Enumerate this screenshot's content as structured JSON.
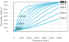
{
  "chart_data": {
    "type": "line",
    "xlabel": "Pressure (bar)",
    "ylabel": "Viscosity (μPa·s)",
    "color": "#40c0e0",
    "grid": true,
    "x": [
      0,
      200,
      400,
      600,
      800,
      1000,
      1500,
      2000,
      3000,
      4000,
      5000,
      6000
    ],
    "series": [
      {
        "name": "220 K",
        "values": [
          11,
          80,
          220,
          380,
          490,
          560,
          650,
          690,
          730,
          760,
          780,
          795
        ]
      },
      {
        "name": "240 K",
        "values": [
          12,
          50,
          130,
          240,
          340,
          420,
          540,
          610,
          690,
          740,
          770,
          790
        ]
      },
      {
        "name": "260 K",
        "values": [
          13,
          35,
          80,
          150,
          230,
          310,
          450,
          550,
          660,
          725,
          765,
          792
        ]
      },
      {
        "name": "280 K",
        "values": [
          14,
          28,
          57,
          100,
          158,
          220,
          370,
          480,
          625,
          710,
          760,
          795
        ]
      },
      {
        "name": "300 K",
        "values": [
          15,
          24,
          44,
          72,
          108,
          155,
          280,
          395,
          570,
          680,
          750,
          800
        ]
      },
      {
        "name": "320 K",
        "values": [
          16,
          21,
          36,
          57,
          83,
          115,
          205,
          305,
          490,
          625,
          720,
          790
        ]
      },
      {
        "name": "350 K",
        "values": [
          17,
          20,
          31,
          46,
          65,
          88,
          150,
          225,
          390,
          535,
          655,
          748
        ]
      },
      {
        "name": "400 K",
        "values": [
          19,
          20,
          27,
          37,
          50,
          66,
          108,
          160,
          285,
          420,
          545,
          655
        ]
      },
      {
        "name": "500 K",
        "values": [
          23,
          23,
          27,
          33,
          42,
          53,
          80,
          114,
          195,
          295,
          400,
          500
        ]
      },
      {
        "name": "700 K",
        "values": [
          30,
          30,
          32,
          36,
          42,
          50,
          68,
          90,
          142,
          205,
          275,
          350
        ]
      }
    ],
    "annotations": [
      {
        "text": "220 K",
        "x": 750,
        "y": 405
      },
      {
        "text": "240 K",
        "x": 550,
        "y": 205
      },
      {
        "text": "280 K",
        "x": 300,
        "y": 90
      },
      {
        "text": "320 K",
        "x": 250,
        "y": 60
      },
      {
        "text": "220 K",
        "x": 6100,
        "y": 795
      },
      {
        "text": "240 K",
        "x": 6100,
        "y": 790
      },
      {
        "text": "260 K",
        "x": 6100,
        "y": 792
      },
      {
        "text": "280 K",
        "x": 6100,
        "y": 795
      },
      {
        "text": "300 K",
        "x": 6100,
        "y": 800
      },
      {
        "text": "320 K",
        "x": 6100,
        "y": 790
      },
      {
        "text": "350 K",
        "x": 6100,
        "y": 748
      },
      {
        "text": "400 K",
        "x": 6100,
        "y": 655
      },
      {
        "text": "500 K",
        "x": 6100,
        "y": 500
      },
      {
        "text": "700 K",
        "x": 6100,
        "y": 350
      }
    ],
    "xlim": [
      0,
      7080
    ],
    "ylim": [
      0,
      800
    ],
    "xticks": [
      0,
      1000,
      2000,
      3000,
      4000,
      5000,
      6000
    ],
    "yticks": [
      0,
      100,
      200,
      300,
      400,
      500,
      600,
      700,
      800
    ]
  }
}
